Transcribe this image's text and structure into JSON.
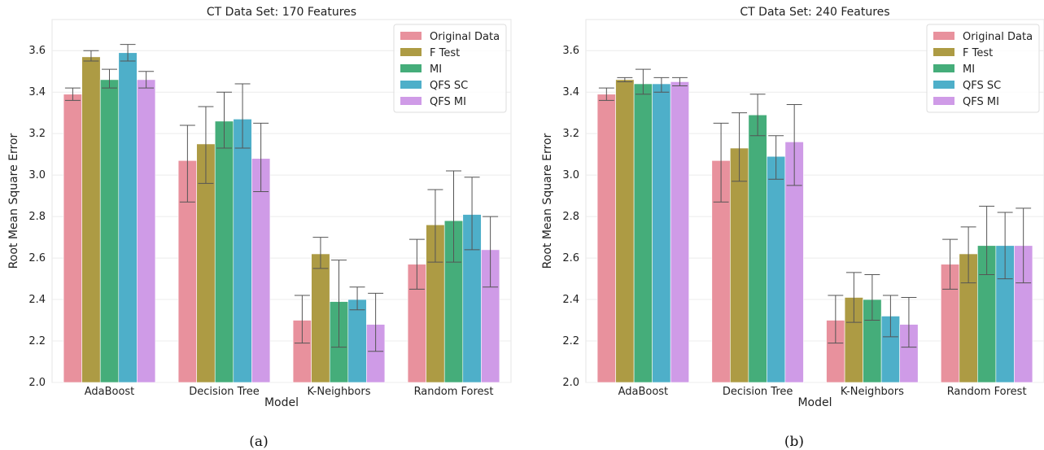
{
  "chart_data": [
    {
      "type": "bar",
      "title": "CT Data Set: 170 Features",
      "xlabel": "Model",
      "ylabel": "Root Mean Square Error",
      "ylim": [
        2.0,
        3.75
      ],
      "yticks": [
        "2.0",
        "2.2",
        "2.4",
        "2.6",
        "2.8",
        "3.0",
        "3.2",
        "3.4",
        "3.6"
      ],
      "categories": [
        "AdaBoost",
        "Decision Tree",
        "K-Neighbors",
        "Random Forest"
      ],
      "caption": "(a)",
      "legend_position": "top-right",
      "grid": true,
      "series": [
        {
          "name": "Original Data",
          "color": "#e8919d",
          "values": [
            3.39,
            3.07,
            2.3,
            2.57
          ],
          "err_low": [
            3.36,
            2.87,
            2.19,
            2.45
          ],
          "err_high": [
            3.42,
            3.24,
            2.42,
            2.69
          ]
        },
        {
          "name": "F Test",
          "color": "#ad9b44",
          "values": [
            3.57,
            3.15,
            2.62,
            2.76
          ],
          "err_low": [
            3.55,
            2.96,
            2.55,
            2.58
          ],
          "err_high": [
            3.6,
            3.33,
            2.7,
            2.93
          ]
        },
        {
          "name": "MI",
          "color": "#45ad7a",
          "values": [
            3.46,
            3.26,
            2.39,
            2.78
          ],
          "err_low": [
            3.42,
            3.13,
            2.17,
            2.58
          ],
          "err_high": [
            3.51,
            3.4,
            2.59,
            3.02
          ]
        },
        {
          "name": "QFS SC",
          "color": "#4eafc9",
          "values": [
            3.59,
            3.27,
            2.4,
            2.81
          ],
          "err_low": [
            3.55,
            3.13,
            2.35,
            2.64
          ],
          "err_high": [
            3.63,
            3.44,
            2.46,
            2.99
          ]
        },
        {
          "name": "QFS MI",
          "color": "#cf9be7",
          "values": [
            3.46,
            3.08,
            2.28,
            2.64
          ],
          "err_low": [
            3.42,
            2.92,
            2.15,
            2.46
          ],
          "err_high": [
            3.5,
            3.25,
            2.43,
            2.8
          ]
        }
      ]
    },
    {
      "type": "bar",
      "title": "CT Data Set: 240 Features",
      "xlabel": "Model",
      "ylabel": "Root Mean Square Error",
      "ylim": [
        2.0,
        3.75
      ],
      "yticks": [
        "2.0",
        "2.2",
        "2.4",
        "2.6",
        "2.8",
        "3.0",
        "3.2",
        "3.4",
        "3.6"
      ],
      "categories": [
        "AdaBoost",
        "Decision Tree",
        "K-Neighbors",
        "Random Forest"
      ],
      "caption": "(b)",
      "legend_position": "top-right",
      "grid": true,
      "series": [
        {
          "name": "Original Data",
          "color": "#e8919d",
          "values": [
            3.39,
            3.07,
            2.3,
            2.57
          ],
          "err_low": [
            3.36,
            2.87,
            2.19,
            2.45
          ],
          "err_high": [
            3.42,
            3.25,
            2.42,
            2.69
          ]
        },
        {
          "name": "F Test",
          "color": "#ad9b44",
          "values": [
            3.46,
            3.13,
            2.41,
            2.62
          ],
          "err_low": [
            3.45,
            2.97,
            2.29,
            2.48
          ],
          "err_high": [
            3.47,
            3.3,
            2.53,
            2.75
          ]
        },
        {
          "name": "MI",
          "color": "#45ad7a",
          "values": [
            3.44,
            3.29,
            2.4,
            2.66
          ],
          "err_low": [
            3.39,
            3.19,
            2.3,
            2.52
          ],
          "err_high": [
            3.51,
            3.39,
            2.52,
            2.85
          ]
        },
        {
          "name": "QFS SC",
          "color": "#4eafc9",
          "values": [
            3.44,
            3.09,
            2.32,
            2.66
          ],
          "err_low": [
            3.4,
            2.98,
            2.22,
            2.5
          ],
          "err_high": [
            3.47,
            3.19,
            2.42,
            2.82
          ]
        },
        {
          "name": "QFS MI",
          "color": "#cf9be7",
          "values": [
            3.45,
            3.16,
            2.28,
            2.66
          ],
          "err_low": [
            3.43,
            2.95,
            2.17,
            2.48
          ],
          "err_high": [
            3.47,
            3.34,
            2.41,
            2.84
          ]
        }
      ]
    }
  ]
}
